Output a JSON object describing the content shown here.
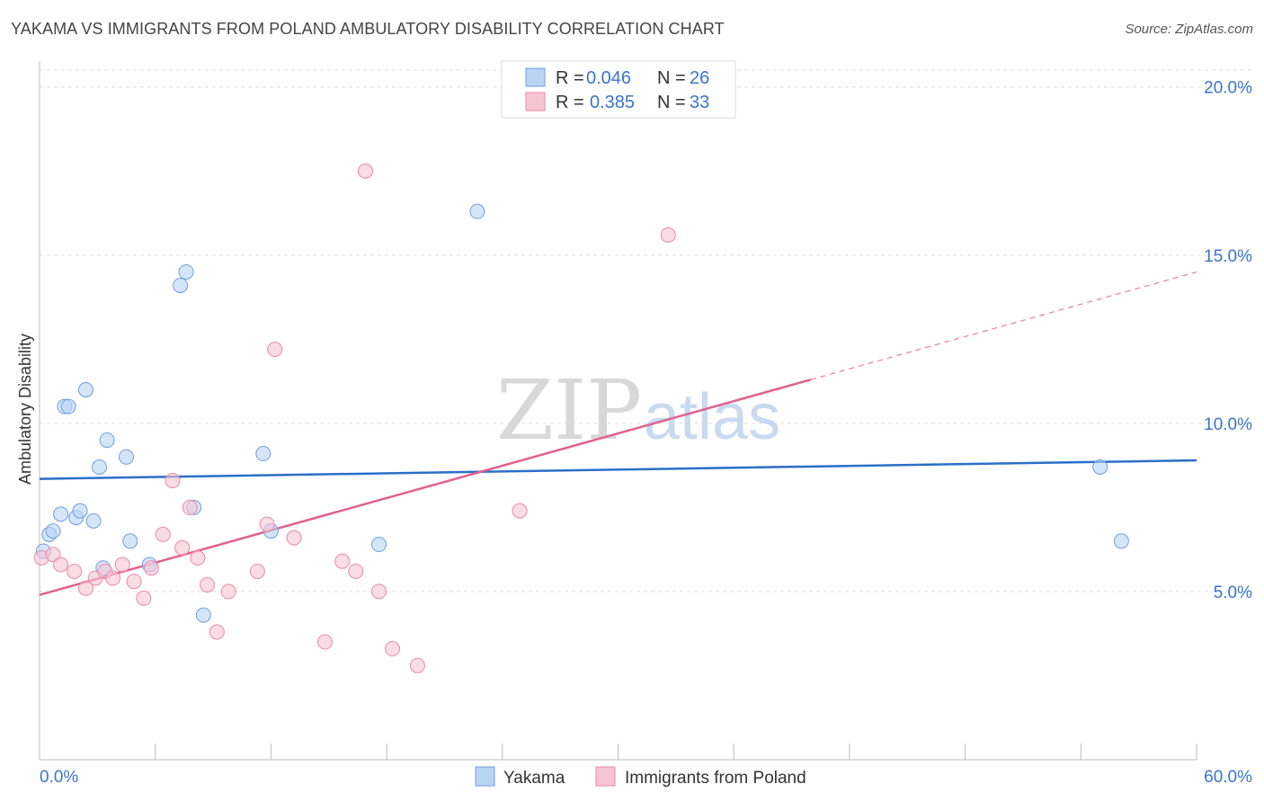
{
  "title": "YAKAMA VS IMMIGRANTS FROM POLAND AMBULATORY DISABILITY CORRELATION CHART",
  "source": "Source: ZipAtlas.com",
  "watermark": {
    "zip": "ZIP",
    "atlas": "atlas"
  },
  "legend": {
    "rows": [
      {
        "r_label": "R =",
        "r_value": "0.046",
        "n_label": "N =",
        "n_value": "26"
      },
      {
        "r_label": "R =",
        "r_value": "0.385",
        "n_label": "N =",
        "n_value": "33"
      }
    ]
  },
  "bottom_legend": [
    "Yakama",
    "Immigrants from Poland"
  ],
  "colors": {
    "yakama_fill": "#b9d3f3",
    "yakama_stroke": "#6f9ee0",
    "yakama_line": "#2a6fcb",
    "poland_fill": "#f7c4d3",
    "poland_stroke": "#e88aa8",
    "poland_line": "#e0608e",
    "tick_text": "#3b74c7",
    "grid": "#dddddd"
  },
  "chart_data": {
    "type": "scatter",
    "title": "YAKAMA VS IMMIGRANTS FROM POLAND AMBULATORY DISABILITY CORRELATION CHART",
    "xlabel": "",
    "ylabel": "Ambulatory Disability",
    "xlim": [
      0,
      60
    ],
    "ylim": [
      0,
      20.5
    ],
    "x_tick_labels": [
      "0.0%",
      "60.0%"
    ],
    "y_ticks": [
      5,
      10,
      15,
      20
    ],
    "y_tick_labels": [
      "5.0%",
      "10.0%",
      "15.0%",
      "20.0%"
    ],
    "grid": true,
    "legend_position": "top-center",
    "series": [
      {
        "name": "Yakama",
        "r": 0.046,
        "n": 26,
        "points": [
          [
            0.2,
            6.2
          ],
          [
            0.5,
            6.7
          ],
          [
            0.7,
            6.8
          ],
          [
            1.1,
            7.3
          ],
          [
            1.3,
            10.5
          ],
          [
            1.5,
            10.5
          ],
          [
            1.9,
            7.2
          ],
          [
            2.1,
            7.4
          ],
          [
            2.4,
            11.0
          ],
          [
            2.8,
            7.1
          ],
          [
            3.1,
            8.7
          ],
          [
            3.5,
            9.5
          ],
          [
            3.3,
            5.7
          ],
          [
            4.5,
            9.0
          ],
          [
            4.7,
            6.5
          ],
          [
            5.7,
            5.8
          ],
          [
            7.3,
            14.1
          ],
          [
            7.6,
            14.5
          ],
          [
            8.0,
            7.5
          ],
          [
            8.5,
            4.3
          ],
          [
            11.6,
            9.1
          ],
          [
            12.0,
            6.8
          ],
          [
            17.6,
            6.4
          ],
          [
            22.7,
            16.3
          ],
          [
            55.0,
            8.7
          ],
          [
            56.1,
            6.5
          ]
        ],
        "trend": {
          "x0": 0,
          "y0": 8.35,
          "x1": 60,
          "y1": 8.9,
          "dashed_from": null
        }
      },
      {
        "name": "Immigrants from Poland",
        "r": 0.385,
        "n": 33,
        "points": [
          [
            0.1,
            6.0
          ],
          [
            0.7,
            6.1
          ],
          [
            1.1,
            5.8
          ],
          [
            1.8,
            5.6
          ],
          [
            2.4,
            5.1
          ],
          [
            2.9,
            5.4
          ],
          [
            3.4,
            5.6
          ],
          [
            3.8,
            5.4
          ],
          [
            4.3,
            5.8
          ],
          [
            4.9,
            5.3
          ],
          [
            5.4,
            4.8
          ],
          [
            5.8,
            5.7
          ],
          [
            6.4,
            6.7
          ],
          [
            6.9,
            8.3
          ],
          [
            7.4,
            6.3
          ],
          [
            7.8,
            7.5
          ],
          [
            8.2,
            6.0
          ],
          [
            8.7,
            5.2
          ],
          [
            9.2,
            3.8
          ],
          [
            9.8,
            5.0
          ],
          [
            11.3,
            5.6
          ],
          [
            11.8,
            7.0
          ],
          [
            12.2,
            12.2
          ],
          [
            13.2,
            6.6
          ],
          [
            14.8,
            3.5
          ],
          [
            15.7,
            5.9
          ],
          [
            16.4,
            5.6
          ],
          [
            16.9,
            17.5
          ],
          [
            17.6,
            5.0
          ],
          [
            18.3,
            3.3
          ],
          [
            19.6,
            2.8
          ],
          [
            24.9,
            7.4
          ],
          [
            32.6,
            15.6
          ]
        ],
        "trend": {
          "x0": 0,
          "y0": 4.9,
          "x1": 60,
          "y1": 14.5,
          "dashed_from": 40
        }
      }
    ]
  }
}
